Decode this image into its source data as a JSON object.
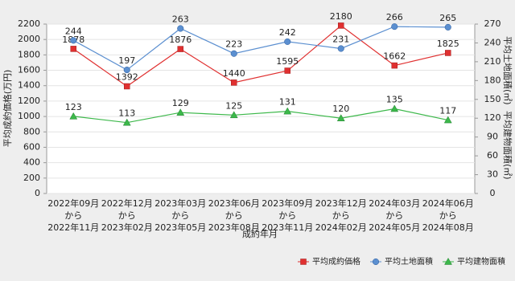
{
  "chart_data": {
    "type": "line",
    "ylabel": "平均成約価格(万円)",
    "y2label": [
      "平均土地面積(㎡)",
      "平均建物面積(㎡)"
    ],
    "xlabel": "成約年月",
    "categories": [
      [
        "2022年09月",
        "から",
        "2022年11月"
      ],
      [
        "2022年12月",
        "から",
        "2023年02月"
      ],
      [
        "2023年03月",
        "から",
        "2023年05月"
      ],
      [
        "2023年06月",
        "から",
        "2023年08月"
      ],
      [
        "2023年09月",
        "から",
        "2023年11月"
      ],
      [
        "2023年12月",
        "から",
        "2024年02月"
      ],
      [
        "2024年03月",
        "から",
        "2024年05月"
      ],
      [
        "2024年06月",
        "から",
        "2024年08月"
      ]
    ],
    "series": [
      {
        "name": "平均成約価格",
        "color": "#e03030",
        "marker": "square",
        "axis": "y",
        "values": [
          1878,
          1392,
          1876,
          1440,
          1595,
          2180,
          1662,
          1825
        ]
      },
      {
        "name": "平均土地面積",
        "color": "#5b8fd0",
        "marker": "circle",
        "axis": "y2",
        "values": [
          244,
          197,
          263,
          223,
          242,
          231,
          266,
          265
        ]
      },
      {
        "name": "平均建物面積",
        "color": "#3cb84a",
        "marker": "triangle",
        "axis": "y2",
        "values": [
          123,
          113,
          129,
          125,
          131,
          120,
          135,
          117
        ]
      }
    ],
    "ylim": [
      0,
      2200
    ],
    "yticks": [
      0,
      200,
      400,
      600,
      800,
      1000,
      1200,
      1400,
      1600,
      1800,
      2000,
      2200
    ],
    "y2lim": [
      0,
      270
    ],
    "y2ticks": [
      0,
      30,
      60,
      90,
      120,
      150,
      180,
      210,
      240,
      270
    ],
    "grid": true,
    "legend": "bottom-right"
  }
}
